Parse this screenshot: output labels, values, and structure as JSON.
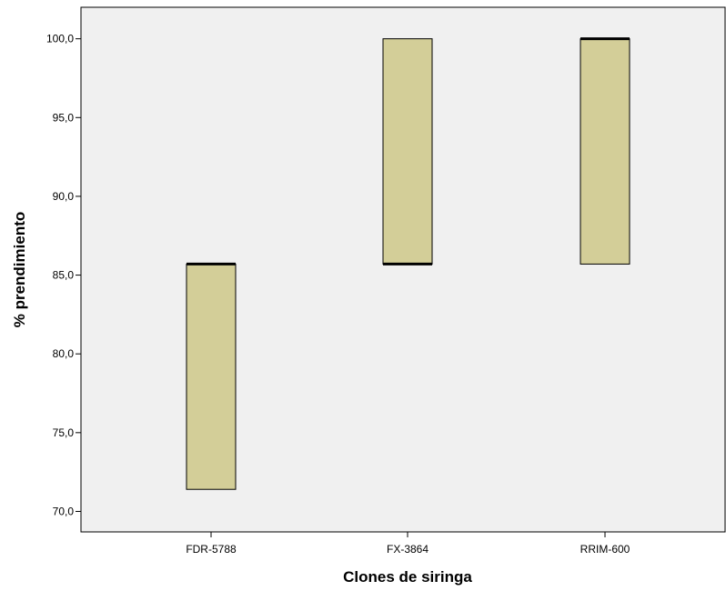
{
  "chart_data": {
    "type": "boxplot",
    "xlabel": "Clones de siringa",
    "ylabel": "% prendimiento",
    "ylim": [
      68.7,
      102.0
    ],
    "y_ticks": [
      "70,0",
      "75,0",
      "80,0",
      "85,0",
      "90,0",
      "95,0",
      "100,0"
    ],
    "y_tick_values": [
      70,
      75,
      80,
      85,
      90,
      95,
      100
    ],
    "categories": [
      "FDR-5788",
      "FX-3864",
      "RRIM-600"
    ],
    "boxes": [
      {
        "category": "FDR-5788",
        "q1": 71.4,
        "median": 85.7,
        "q3": 85.7
      },
      {
        "category": "FX-3864",
        "q1": 85.7,
        "median": 85.7,
        "q3": 100.0
      },
      {
        "category": "RRIM-600",
        "q1": 85.7,
        "median": 100.0,
        "q3": 100.0
      }
    ],
    "box_color": "#d3ce98",
    "plot_background": "#f0f0f0",
    "grid": false
  }
}
